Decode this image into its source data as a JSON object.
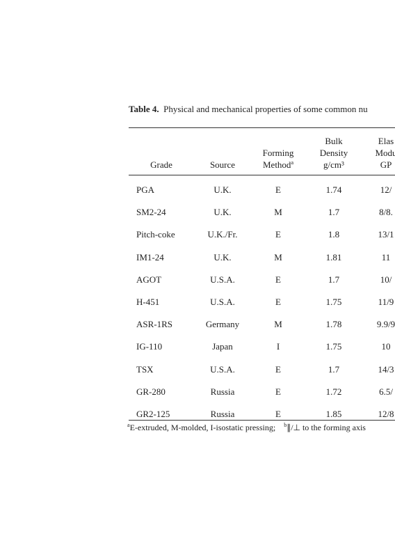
{
  "table": {
    "caption": {
      "label": "Table 4.",
      "text": "Physical and mechanical properties of some common nu"
    },
    "headers": [
      {
        "lines": [
          "Grade"
        ]
      },
      {
        "lines": [
          "Source"
        ]
      },
      {
        "lines": [
          "Forming",
          "Method"
        ],
        "sup": "a"
      },
      {
        "lines": [
          "Bulk",
          "Density",
          "g/cm³"
        ]
      },
      {
        "lines": [
          "Elas",
          "Modu",
          "GP"
        ]
      }
    ],
    "rows": [
      [
        "PGA",
        "U.K.",
        "E",
        "1.74",
        "12/"
      ],
      [
        "SM2-24",
        "U.K.",
        "M",
        "1.7",
        "8/8."
      ],
      [
        "Pitch-coke",
        "U.K./Fr.",
        "E",
        "1.8",
        "13/1"
      ],
      [
        "IM1-24",
        "U.K.",
        "M",
        "1.81",
        "11"
      ],
      [
        "AGOT",
        "U.S.A.",
        "E",
        "1.7",
        "10/"
      ],
      [
        "H-451",
        "U.S.A.",
        "E",
        "1.75",
        "11/9"
      ],
      [
        "ASR-1RS",
        "Germany",
        "M",
        "1.78",
        "9.9/9"
      ],
      [
        "IG-110",
        "Japan",
        "I",
        "1.75",
        "10"
      ],
      [
        "TSX",
        "U.S.A.",
        "E",
        "1.7",
        "14/3"
      ],
      [
        "GR-280",
        "Russia",
        "E",
        "1.72",
        "6.5/"
      ],
      [
        "GR2-125",
        "Russia",
        "E",
        "1.85",
        "12/8"
      ]
    ],
    "footnotes": [
      {
        "mark": "a",
        "text": "E-extruded, M-molded, I-isostatic pressing;"
      },
      {
        "mark": "b",
        "text": "∥/⊥ to the forming axis"
      }
    ]
  }
}
